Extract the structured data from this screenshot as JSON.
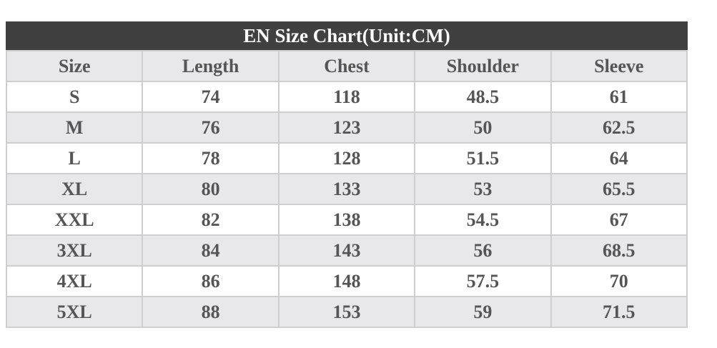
{
  "table": {
    "title": "EN Size Chart(Unit:CM)",
    "header": [
      "Size",
      "Length",
      "Chest",
      "Shoulder",
      "Sleeve"
    ],
    "rows": [
      [
        "S",
        74,
        118,
        48.5,
        61
      ],
      [
        "M",
        76,
        123,
        50,
        62.5
      ],
      [
        "L",
        78,
        128,
        51.5,
        64
      ],
      [
        "XL",
        80,
        133,
        53,
        65.5
      ],
      [
        "XXL",
        82,
        138,
        54.5,
        67
      ],
      [
        "3XL",
        84,
        143,
        56,
        68.5
      ],
      [
        "4XL",
        86,
        148,
        57.5,
        70
      ],
      [
        "5XL",
        88,
        153,
        59,
        71.5
      ]
    ]
  }
}
